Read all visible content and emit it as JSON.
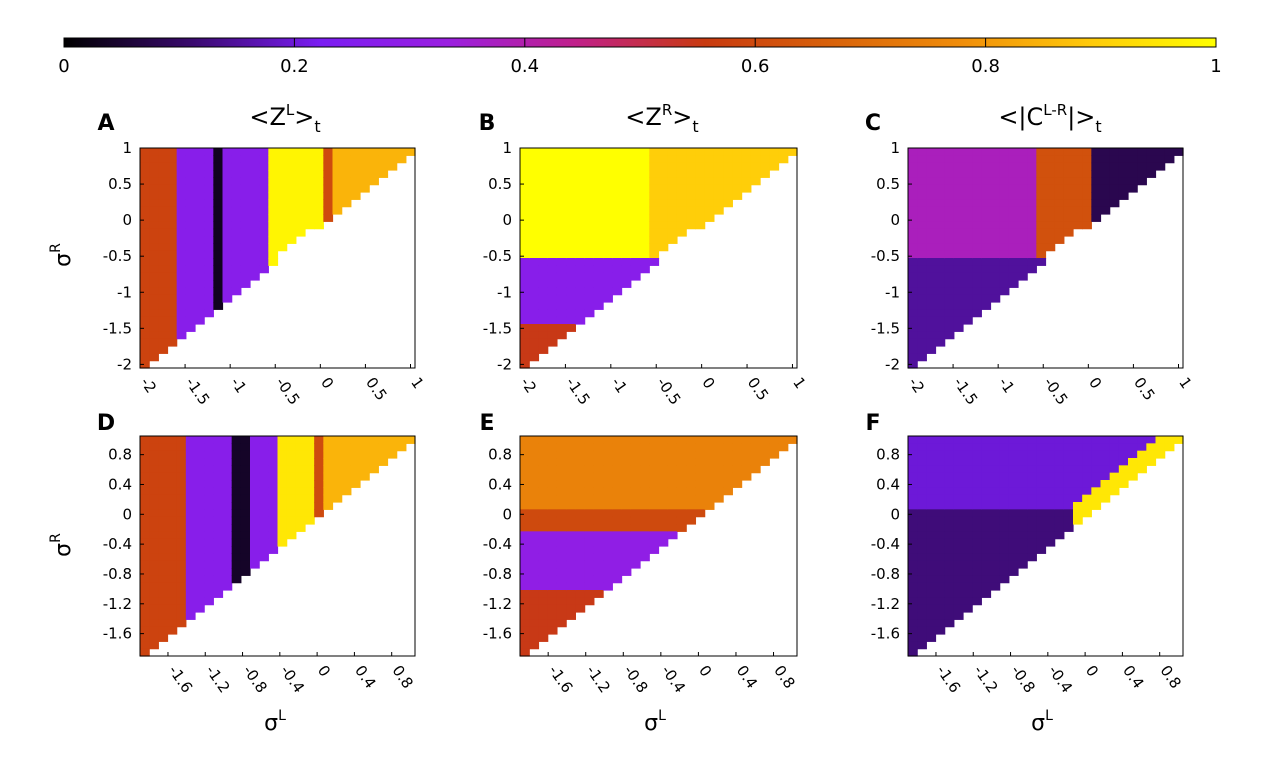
{
  "colorbar": {
    "ticks": [
      0,
      0.2,
      0.4,
      0.6,
      0.8,
      1
    ],
    "tick_labels": [
      "0",
      "0.2",
      "0.4",
      "0.6",
      "0.8",
      "1"
    ],
    "stops": [
      "#000000",
      "#3a0a6e",
      "#7a1df2",
      "#9a1fe0",
      "#c0208a",
      "#c83a10",
      "#d8620a",
      "#f08d0a",
      "#ffc90a",
      "#ffff00"
    ]
  },
  "axis_labels": {
    "y_main": "σ",
    "y_sup": "R",
    "x_main": "σ",
    "x_sup": "L"
  },
  "chart_data": [
    {
      "type": "heatmap",
      "panel": "A",
      "title_main": "<Z",
      "title_sup": "L",
      "title_end": ">",
      "title_sub": "t",
      "x_range": [
        -2,
        1.05
      ],
      "y_range": [
        -2.05,
        1
      ],
      "x_ticks": [
        -2,
        -1.5,
        -1,
        -0.5,
        0,
        0.5,
        1
      ],
      "x_tick_labels": [
        "-2",
        "-1.5",
        "-1",
        "-0.5",
        "0",
        "0.5",
        "1"
      ],
      "y_ticks": [
        -2,
        -1.5,
        -1,
        -0.5,
        0,
        0.5,
        1
      ],
      "y_tick_labels": [
        "-2",
        "-1.5",
        "-1",
        "-0.5",
        "0",
        "0.5",
        "1"
      ],
      "regions": [
        {
          "x": [
            -2.0,
            -1.55
          ],
          "value": 0.58
        },
        {
          "x": [
            -1.55,
            -1.2
          ],
          "value": 0.27
        },
        {
          "x": [
            -1.2,
            -1.08
          ],
          "value": 0.03
        },
        {
          "x": [
            -1.08,
            -0.55
          ],
          "value": 0.27
        },
        {
          "x": [
            -0.55,
            0.0
          ],
          "value": 0.98
        },
        {
          "x": [
            0.0,
            0.1
          ],
          "value": 0.6
        },
        {
          "x": [
            0.1,
            1.05
          ],
          "value": 0.85
        }
      ]
    },
    {
      "type": "heatmap",
      "panel": "B",
      "title_main": "<Z",
      "title_sup": "R",
      "title_end": ">",
      "title_sub": "t",
      "x_range": [
        -2,
        1.05
      ],
      "y_range": [
        -2.05,
        1
      ],
      "x_ticks": [
        -2,
        -1.5,
        -1,
        -0.5,
        0,
        0.5,
        1
      ],
      "x_tick_labels": [
        "-2",
        "-1.5",
        "-1",
        "-0.5",
        "0",
        "0.5",
        "1"
      ],
      "y_ticks": [
        -2,
        -1.5,
        -1,
        -0.5,
        0,
        0.5,
        1
      ],
      "y_tick_labels": [
        "-2",
        "-1.5",
        "-1",
        "-0.5",
        "0",
        "0.5",
        "1"
      ],
      "regions": [
        {
          "y": [
            -0.55,
            1.0
          ],
          "x": [
            -2.0,
            -0.55
          ],
          "value": 1.0
        },
        {
          "y": [
            -0.55,
            1.0
          ],
          "x": [
            -0.55,
            1.05
          ],
          "value": 0.9
        },
        {
          "y": [
            -1.4,
            -0.55
          ],
          "x": [
            -2.0,
            1.05
          ],
          "value": 0.27
        },
        {
          "y": [
            -2.05,
            -1.4
          ],
          "x": [
            -2.0,
            1.05
          ],
          "value": 0.55
        }
      ]
    },
    {
      "type": "heatmap",
      "panel": "C",
      "title_main": "<|C",
      "title_sup": "L-R",
      "title_end": "|>",
      "title_sub": "t",
      "x_range": [
        -2,
        1.05
      ],
      "y_range": [
        -2.05,
        1
      ],
      "x_ticks": [
        -2,
        -1.5,
        -1,
        -0.5,
        0,
        0.5,
        1
      ],
      "x_tick_labels": [
        "-2",
        "-1.5",
        "-1",
        "-0.5",
        "0",
        "0.5",
        "1"
      ],
      "y_ticks": [
        -2,
        -1.5,
        -1,
        -0.5,
        0,
        0.5,
        1
      ],
      "y_tick_labels": [
        "-2",
        "-1.5",
        "-1",
        "-0.5",
        "0",
        "0.5",
        "1"
      ],
      "regions": [
        {
          "y": [
            -0.55,
            1.0
          ],
          "x": [
            -2.0,
            -0.55
          ],
          "value": 0.38
        },
        {
          "y": [
            -0.55,
            1.0
          ],
          "x": [
            -0.55,
            0.05
          ],
          "value": 0.62
        },
        {
          "y": [
            -0.55,
            1.0
          ],
          "x": [
            0.05,
            1.05
          ],
          "value": 0.08
        },
        {
          "y": [
            -2.05,
            -0.55
          ],
          "x": [
            -2.0,
            1.05
          ],
          "value": 0.15
        }
      ]
    },
    {
      "type": "heatmap",
      "panel": "D",
      "title_main": "",
      "title_sup": "",
      "title_end": "",
      "title_sub": "",
      "x_range": [
        -1.9,
        1.05
      ],
      "y_range": [
        -1.9,
        1.05
      ],
      "x_ticks": [
        -1.6,
        -1.2,
        -0.8,
        -0.4,
        0,
        0.4,
        0.8
      ],
      "x_tick_labels": [
        "-1.6",
        "-1.2",
        "-0.8",
        "-0.4",
        "0",
        "0.4",
        "0.8"
      ],
      "y_ticks": [
        -1.6,
        -1.2,
        -0.8,
        -0.4,
        0,
        0.4,
        0.8
      ],
      "y_tick_labels": [
        "-1.6",
        "-1.2",
        "-0.8",
        "-0.4",
        "0",
        "0.4",
        "0.8"
      ],
      "regions": [
        {
          "x": [
            -1.9,
            -1.45
          ],
          "value": 0.58
        },
        {
          "x": [
            -1.45,
            -0.88
          ],
          "value": 0.27
        },
        {
          "x": [
            -0.88,
            -0.75
          ],
          "value": 0.04
        },
        {
          "x": [
            -0.75,
            -0.38
          ],
          "value": 0.27
        },
        {
          "x": [
            -0.38,
            -0.05
          ],
          "value": 0.95
        },
        {
          "x": [
            -0.05,
            0.08
          ],
          "value": 0.6
        },
        {
          "x": [
            0.08,
            1.05
          ],
          "value": 0.85
        }
      ]
    },
    {
      "type": "heatmap",
      "panel": "E",
      "title_main": "",
      "title_sup": "",
      "title_end": "",
      "title_sub": "",
      "x_range": [
        -1.9,
        1.05
      ],
      "y_range": [
        -1.9,
        1.05
      ],
      "x_ticks": [
        -1.6,
        -1.2,
        -0.8,
        -0.4,
        0,
        0.4,
        0.8
      ],
      "x_tick_labels": [
        "-1.6",
        "-1.2",
        "-0.8",
        "-0.4",
        "0",
        "0.4",
        "0.8"
      ],
      "y_ticks": [
        -1.6,
        -1.2,
        -0.8,
        -0.4,
        0,
        0.4,
        0.8
      ],
      "y_tick_labels": [
        "-1.6",
        "-1.2",
        "-0.8",
        "-0.4",
        "0",
        "0.4",
        "0.8"
      ],
      "regions": [
        {
          "y": [
            0.1,
            1.05
          ],
          "x": [
            -1.9,
            1.05
          ],
          "value": 0.75
        },
        {
          "y": [
            -0.2,
            0.1
          ],
          "x": [
            -1.9,
            1.05
          ],
          "value": 0.6
        },
        {
          "y": [
            -1.0,
            -0.2
          ],
          "x": [
            -1.9,
            1.05
          ],
          "value": 0.3
        },
        {
          "y": [
            -1.9,
            -1.0
          ],
          "x": [
            -1.9,
            1.05
          ],
          "value": 0.55
        }
      ]
    },
    {
      "type": "heatmap",
      "panel": "F",
      "title_main": "",
      "title_sup": "",
      "title_end": "",
      "title_sub": "",
      "x_range": [
        -1.9,
        1.05
      ],
      "y_range": [
        -1.9,
        1.05
      ],
      "x_ticks": [
        -1.6,
        -1.2,
        -0.8,
        -0.4,
        0,
        0.4,
        0.8
      ],
      "x_tick_labels": [
        "-1.6",
        "-1.2",
        "-0.8",
        "-0.4",
        "0",
        "0.4",
        "0.8"
      ],
      "y_ticks": [
        -1.6,
        -1.2,
        -0.8,
        -0.4,
        0,
        0.4,
        0.8
      ],
      "y_tick_labels": [
        "-1.6",
        "-1.2",
        "-0.8",
        "-0.4",
        "0",
        "0.4",
        "0.8"
      ],
      "regions": [
        {
          "y": [
            0.1,
            1.05
          ],
          "x": [
            -1.9,
            1.05
          ],
          "value": 0.2
        },
        {
          "y": [
            -1.9,
            0.1
          ],
          "x": [
            -1.9,
            1.05
          ],
          "value": 0.12
        },
        {
          "diag": true,
          "band": 0.25,
          "value": 0.95
        }
      ]
    }
  ]
}
